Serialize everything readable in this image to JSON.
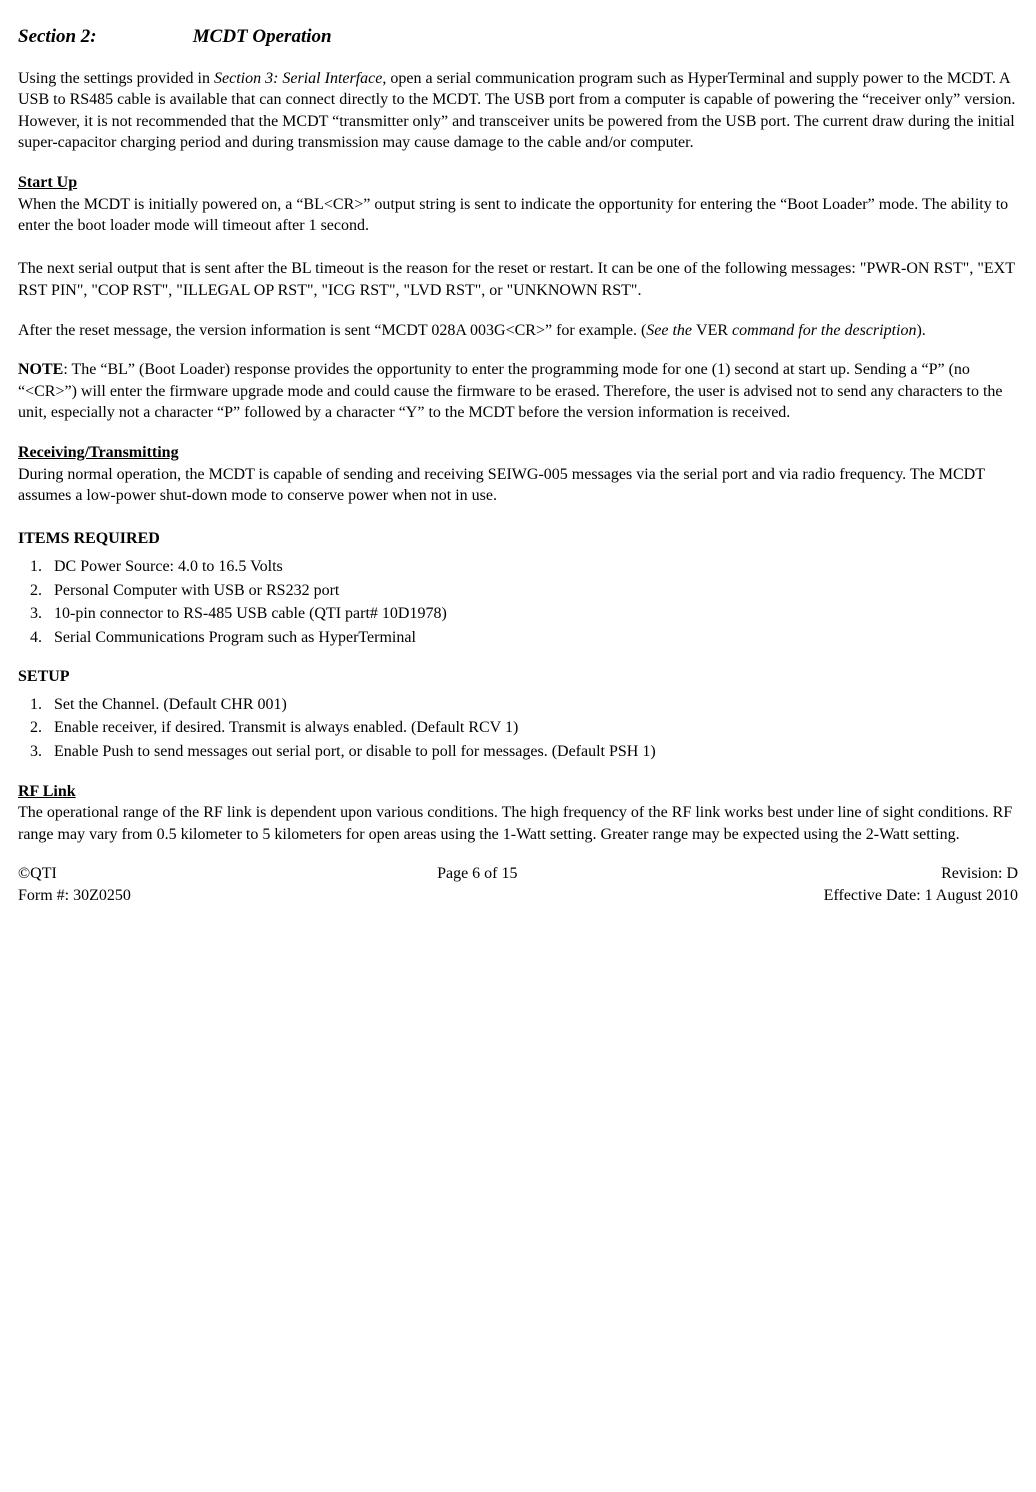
{
  "section": {
    "label": "Section 2:",
    "title": "MCDT Operation"
  },
  "intro_para": "Using the settings provided in ",
  "intro_italic": "Section 3: Serial Interface",
  "intro_rest": ", open a serial communication program such as HyperTerminal and supply power to the MCDT.  A USB to RS485 cable is available that can connect directly to the MCDT. The USB port from a computer is capable of powering the “receiver only” version. However, it is not recommended that the MCDT “transmitter only” and transceiver units be powered from the USB port. The current draw during the initial super-capacitor charging period and during transmission may cause damage to the cable and/or computer.",
  "startup": {
    "heading": "Start Up",
    "p1": "When the MCDT is initially powered on, a “BL<CR>” output string is sent to indicate the opportunity for entering the “Boot Loader” mode. The ability to enter the boot loader mode will timeout after 1 second.",
    "p2": "The next serial output that is sent after the BL timeout is the reason for the reset or restart. It can be one of the following messages: \"PWR-ON RST\", \"EXT RST PIN\", \"COP RST\", \"ILLEGAL OP RST\", \"ICG RST\", \"LVD RST\", or \"UNKNOWN RST\".",
    "p3_pre": "After the reset message, the version information is sent “MCDT 028A 003G<CR>” for example. (",
    "p3_italic": "See the ",
    "p3_mid": "VER ",
    "p3_italic2": "command for the description",
    "p3_post": ")."
  },
  "note": {
    "label": "NOTE",
    "text": ": The “BL” (Boot Loader) response provides the opportunity to enter the programming mode for one (1) second at start up.  Sending a “P” (no “<CR>”) will enter the firmware upgrade mode and could cause the firmware to be erased. Therefore, the user is advised not to send any characters to the unit, especially not a character “P” followed by a character “Y” to the MCDT before the version information is received."
  },
  "rxtx": {
    "heading": "Receiving/Transmitting",
    "p1": "During normal operation, the MCDT is capable of sending and receiving SEIWG-005 messages via the serial port and via radio frequency.  The MCDT assumes a low-power shut-down mode to conserve power when not in use."
  },
  "items_required": {
    "heading": "ITEMS REQUIRED",
    "list": [
      "DC Power Source:  4.0 to 16.5 Volts",
      "Personal Computer with USB or RS232 port",
      "10-pin connector to RS-485 USB cable (QTI part# 10D1978)",
      "Serial Communications Program such as HyperTerminal"
    ]
  },
  "setup": {
    "heading": "SETUP",
    "list": [
      "Set the Channel.  (Default CHR 001)",
      "Enable receiver, if desired.  Transmit is always enabled.  (Default RCV 1)",
      "Enable Push to send messages out serial port, or disable to poll for messages.  (Default PSH 1)"
    ]
  },
  "rflink": {
    "heading": "RF Link",
    "p1": "The operational range of the RF link is dependent upon various conditions.  The high frequency of the RF link works best under line of sight conditions.  RF range may vary from 0.5 kilometer to 5 kilometers for open areas using the 1-Watt setting.  Greater range may be expected using the 2-Watt setting."
  },
  "footer": {
    "left1": "©QTI",
    "left2": "Form #: 30Z0250",
    "center": "Page 6 of 15",
    "right1": "Revision: D",
    "right2": "Effective Date: 1 August 2010"
  }
}
